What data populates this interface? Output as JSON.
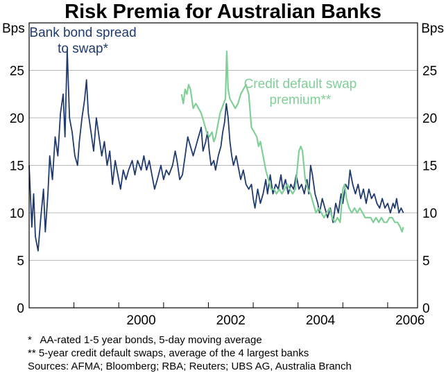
{
  "chart_data": {
    "type": "line",
    "title": "Risk Premia for Australian Banks",
    "y_unit_left": "Bps",
    "y_unit_right": "Bps",
    "ylim": [
      0,
      30
    ],
    "yticks": [
      0,
      5,
      10,
      15,
      20,
      25
    ],
    "xlim": [
      1998.0,
      2006.667
    ],
    "xticks": [
      {
        "label": "2000",
        "value": 2000
      },
      {
        "label": "2002",
        "value": 2002
      },
      {
        "label": "2004",
        "value": 2004
      },
      {
        "label": "2006",
        "value": 2006
      }
    ],
    "grid": true,
    "series": [
      {
        "name": "Bank bond spread to swap*",
        "color": "#1f3a6e",
        "points": [
          [
            1998.0,
            15.0
          ],
          [
            1998.06,
            8.5
          ],
          [
            1998.1,
            12.0
          ],
          [
            1998.14,
            7.5
          ],
          [
            1998.2,
            6.0
          ],
          [
            1998.26,
            9.5
          ],
          [
            1998.32,
            12.5
          ],
          [
            1998.36,
            8.0
          ],
          [
            1998.42,
            12.0
          ],
          [
            1998.46,
            16.0
          ],
          [
            1998.52,
            13.5
          ],
          [
            1998.58,
            18.0
          ],
          [
            1998.64,
            16.0
          ],
          [
            1998.7,
            20.5
          ],
          [
            1998.76,
            22.5
          ],
          [
            1998.8,
            18.0
          ],
          [
            1998.85,
            27.2
          ],
          [
            1998.9,
            20.0
          ],
          [
            1998.96,
            18.5
          ],
          [
            1999.02,
            16.0
          ],
          [
            1999.08,
            15.0
          ],
          [
            1999.12,
            17.5
          ],
          [
            1999.18,
            20.0
          ],
          [
            1999.24,
            22.0
          ],
          [
            1999.28,
            24.0
          ],
          [
            1999.32,
            20.5
          ],
          [
            1999.38,
            18.5
          ],
          [
            1999.44,
            16.5
          ],
          [
            1999.5,
            20.0
          ],
          [
            1999.56,
            18.0
          ],
          [
            1999.62,
            16.0
          ],
          [
            1999.68,
            17.5
          ],
          [
            1999.74,
            15.0
          ],
          [
            1999.8,
            16.5
          ],
          [
            1999.86,
            13.0
          ],
          [
            1999.92,
            15.5
          ],
          [
            1999.98,
            14.0
          ],
          [
            2000.04,
            12.5
          ],
          [
            2000.1,
            14.5
          ],
          [
            2000.16,
            13.5
          ],
          [
            2000.22,
            14.5
          ],
          [
            2000.3,
            15.5
          ],
          [
            2000.36,
            14.0
          ],
          [
            2000.42,
            15.5
          ],
          [
            2000.5,
            14.5
          ],
          [
            2000.56,
            16.0
          ],
          [
            2000.62,
            14.5
          ],
          [
            2000.68,
            15.5
          ],
          [
            2000.74,
            14.0
          ],
          [
            2000.8,
            12.5
          ],
          [
            2000.86,
            13.5
          ],
          [
            2000.94,
            15.0
          ],
          [
            2001.0,
            13.5
          ],
          [
            2001.06,
            14.5
          ],
          [
            2001.12,
            14.0
          ],
          [
            2001.2,
            15.0
          ],
          [
            2001.26,
            16.5
          ],
          [
            2001.3,
            15.5
          ],
          [
            2001.36,
            13.5
          ],
          [
            2001.42,
            14.0
          ],
          [
            2001.48,
            16.0
          ],
          [
            2001.54,
            18.0
          ],
          [
            2001.6,
            17.0
          ],
          [
            2001.66,
            16.0
          ],
          [
            2001.72,
            17.0
          ],
          [
            2001.78,
            18.0
          ],
          [
            2001.84,
            19.0
          ],
          [
            2001.88,
            16.5
          ],
          [
            2001.94,
            17.5
          ],
          [
            2001.98,
            18.5
          ],
          [
            2002.02,
            16.5
          ],
          [
            2002.06,
            15.0
          ],
          [
            2002.12,
            15.5
          ],
          [
            2002.16,
            14.5
          ],
          [
            2002.22,
            16.0
          ],
          [
            2002.28,
            17.0
          ],
          [
            2002.32,
            18.5
          ],
          [
            2002.36,
            19.5
          ],
          [
            2002.4,
            21.5
          ],
          [
            2002.44,
            20.0
          ],
          [
            2002.48,
            17.5
          ],
          [
            2002.52,
            16.0
          ],
          [
            2002.56,
            15.0
          ],
          [
            2002.62,
            16.0
          ],
          [
            2002.68,
            14.5
          ],
          [
            2002.72,
            13.5
          ],
          [
            2002.78,
            14.5
          ],
          [
            2002.84,
            13.0
          ],
          [
            2002.9,
            12.5
          ],
          [
            2002.96,
            13.0
          ],
          [
            2003.0,
            11.5
          ],
          [
            2003.04,
            10.5
          ],
          [
            2003.1,
            12.5
          ],
          [
            2003.16,
            11.0
          ],
          [
            2003.22,
            12.0
          ],
          [
            2003.28,
            13.5
          ],
          [
            2003.32,
            12.0
          ],
          [
            2003.38,
            14.0
          ],
          [
            2003.44,
            12.0
          ],
          [
            2003.5,
            13.0
          ],
          [
            2003.56,
            12.5
          ],
          [
            2003.62,
            14.0
          ],
          [
            2003.66,
            12.5
          ],
          [
            2003.72,
            13.5
          ],
          [
            2003.78,
            12.0
          ],
          [
            2003.84,
            13.0
          ],
          [
            2003.9,
            12.5
          ],
          [
            2003.96,
            14.0
          ],
          [
            2004.02,
            12.5
          ],
          [
            2004.08,
            13.0
          ],
          [
            2004.14,
            12.0
          ],
          [
            2004.2,
            13.5
          ],
          [
            2004.24,
            12.0
          ],
          [
            2004.28,
            15.0
          ],
          [
            2004.32,
            14.0
          ],
          [
            2004.38,
            12.0
          ],
          [
            2004.44,
            11.0
          ],
          [
            2004.48,
            10.0
          ],
          [
            2004.54,
            11.5
          ],
          [
            2004.6,
            10.5
          ],
          [
            2004.66,
            9.5
          ],
          [
            2004.72,
            10.5
          ],
          [
            2004.78,
            9.0
          ],
          [
            2004.84,
            11.0
          ],
          [
            2004.9,
            10.0
          ],
          [
            2004.96,
            12.0
          ],
          [
            2005.0,
            11.0
          ],
          [
            2005.06,
            13.0
          ],
          [
            2005.12,
            12.5
          ],
          [
            2005.16,
            14.5
          ],
          [
            2005.22,
            13.0
          ],
          [
            2005.28,
            12.0
          ],
          [
            2005.34,
            13.0
          ],
          [
            2005.4,
            11.5
          ],
          [
            2005.46,
            12.5
          ],
          [
            2005.52,
            11.0
          ],
          [
            2005.58,
            12.5
          ],
          [
            2005.64,
            11.5
          ],
          [
            2005.7,
            12.0
          ],
          [
            2005.76,
            11.0
          ],
          [
            2005.82,
            10.5
          ],
          [
            2005.88,
            11.5
          ],
          [
            2005.94,
            10.5
          ],
          [
            2006.0,
            11.0
          ],
          [
            2006.06,
            10.0
          ],
          [
            2006.12,
            11.0
          ],
          [
            2006.16,
            10.5
          ],
          [
            2006.2,
            11.5
          ],
          [
            2006.25,
            10.0
          ],
          [
            2006.3,
            10.5
          ],
          [
            2006.35,
            10.0
          ]
        ]
      },
      {
        "name": "Credit default swap premium**",
        "color": "#7fcf97",
        "points": [
          [
            2001.4,
            22.5
          ],
          [
            2001.44,
            21.5
          ],
          [
            2001.48,
            23.0
          ],
          [
            2001.52,
            22.5
          ],
          [
            2001.56,
            23.5
          ],
          [
            2001.6,
            23.0
          ],
          [
            2001.66,
            21.0
          ],
          [
            2001.72,
            21.5
          ],
          [
            2001.78,
            21.0
          ],
          [
            2001.84,
            20.5
          ],
          [
            2001.9,
            19.5
          ],
          [
            2001.96,
            18.5
          ],
          [
            2002.02,
            18.0
          ],
          [
            2002.08,
            18.5
          ],
          [
            2002.12,
            17.5
          ],
          [
            2002.16,
            18.0
          ],
          [
            2002.2,
            19.0
          ],
          [
            2002.26,
            20.5
          ],
          [
            2002.3,
            21.0
          ],
          [
            2002.34,
            21.5
          ],
          [
            2002.38,
            22.0
          ],
          [
            2002.41,
            27.0
          ],
          [
            2002.44,
            23.0
          ],
          [
            2002.48,
            22.0
          ],
          [
            2002.54,
            21.5
          ],
          [
            2002.6,
            21.0
          ],
          [
            2002.66,
            21.5
          ],
          [
            2002.72,
            22.5
          ],
          [
            2002.78,
            23.0
          ],
          [
            2002.84,
            23.5
          ],
          [
            2002.9,
            22.5
          ],
          [
            2002.96,
            19.0
          ],
          [
            2003.02,
            18.5
          ],
          [
            2003.08,
            18.0
          ],
          [
            2003.12,
            17.0
          ],
          [
            2003.16,
            17.5
          ],
          [
            2003.22,
            16.0
          ],
          [
            2003.28,
            14.5
          ],
          [
            2003.34,
            13.5
          ],
          [
            2003.4,
            12.5
          ],
          [
            2003.46,
            12.5
          ],
          [
            2003.52,
            12.0
          ],
          [
            2003.58,
            12.5
          ],
          [
            2003.64,
            12.0
          ],
          [
            2003.7,
            12.5
          ],
          [
            2003.76,
            13.0
          ],
          [
            2003.82,
            12.5
          ],
          [
            2003.88,
            12.0
          ],
          [
            2003.94,
            12.5
          ],
          [
            2003.98,
            14.5
          ],
          [
            2004.02,
            16.5
          ],
          [
            2004.06,
            17.0
          ],
          [
            2004.1,
            16.5
          ],
          [
            2004.16,
            13.5
          ],
          [
            2004.22,
            12.5
          ],
          [
            2004.28,
            12.0
          ],
          [
            2004.34,
            11.0
          ],
          [
            2004.4,
            10.0
          ],
          [
            2004.46,
            10.5
          ],
          [
            2004.52,
            10.0
          ],
          [
            2004.58,
            9.5
          ],
          [
            2004.64,
            10.0
          ],
          [
            2004.7,
            10.5
          ],
          [
            2004.76,
            9.5
          ],
          [
            2004.82,
            9.0
          ],
          [
            2004.88,
            9.5
          ],
          [
            2004.94,
            9.0
          ],
          [
            2005.0,
            12.5
          ],
          [
            2005.04,
            13.0
          ],
          [
            2005.08,
            11.5
          ],
          [
            2005.14,
            10.5
          ],
          [
            2005.2,
            10.0
          ],
          [
            2005.26,
            10.5
          ],
          [
            2005.32,
            10.0
          ],
          [
            2005.38,
            10.5
          ],
          [
            2005.44,
            10.0
          ],
          [
            2005.5,
            9.5
          ],
          [
            2005.56,
            9.5
          ],
          [
            2005.62,
            9.5
          ],
          [
            2005.68,
            9.0
          ],
          [
            2005.74,
            9.5
          ],
          [
            2005.8,
            9.0
          ],
          [
            2005.86,
            9.5
          ],
          [
            2005.92,
            9.0
          ],
          [
            2005.98,
            9.0
          ],
          [
            2006.04,
            9.5
          ],
          [
            2006.1,
            9.5
          ],
          [
            2006.16,
            9.0
          ],
          [
            2006.22,
            9.0
          ],
          [
            2006.28,
            8.5
          ],
          [
            2006.32,
            8.0
          ],
          [
            2006.35,
            8.5
          ]
        ]
      }
    ],
    "annotations": [
      {
        "lines": [
          "Bank bond spread",
          "to swap*"
        ],
        "series": 0
      },
      {
        "lines": [
          "Credit default swap",
          "premium**"
        ],
        "series": 1
      }
    ],
    "footnotes": [
      "*   AA-rated 1-5 year bonds, 5-day moving average",
      "** 5-year credit default swaps, average of the 4 largest banks",
      "Sources: AFMA; Bloomberg; RBA; Reuters; UBS AG, Australia Branch"
    ]
  }
}
